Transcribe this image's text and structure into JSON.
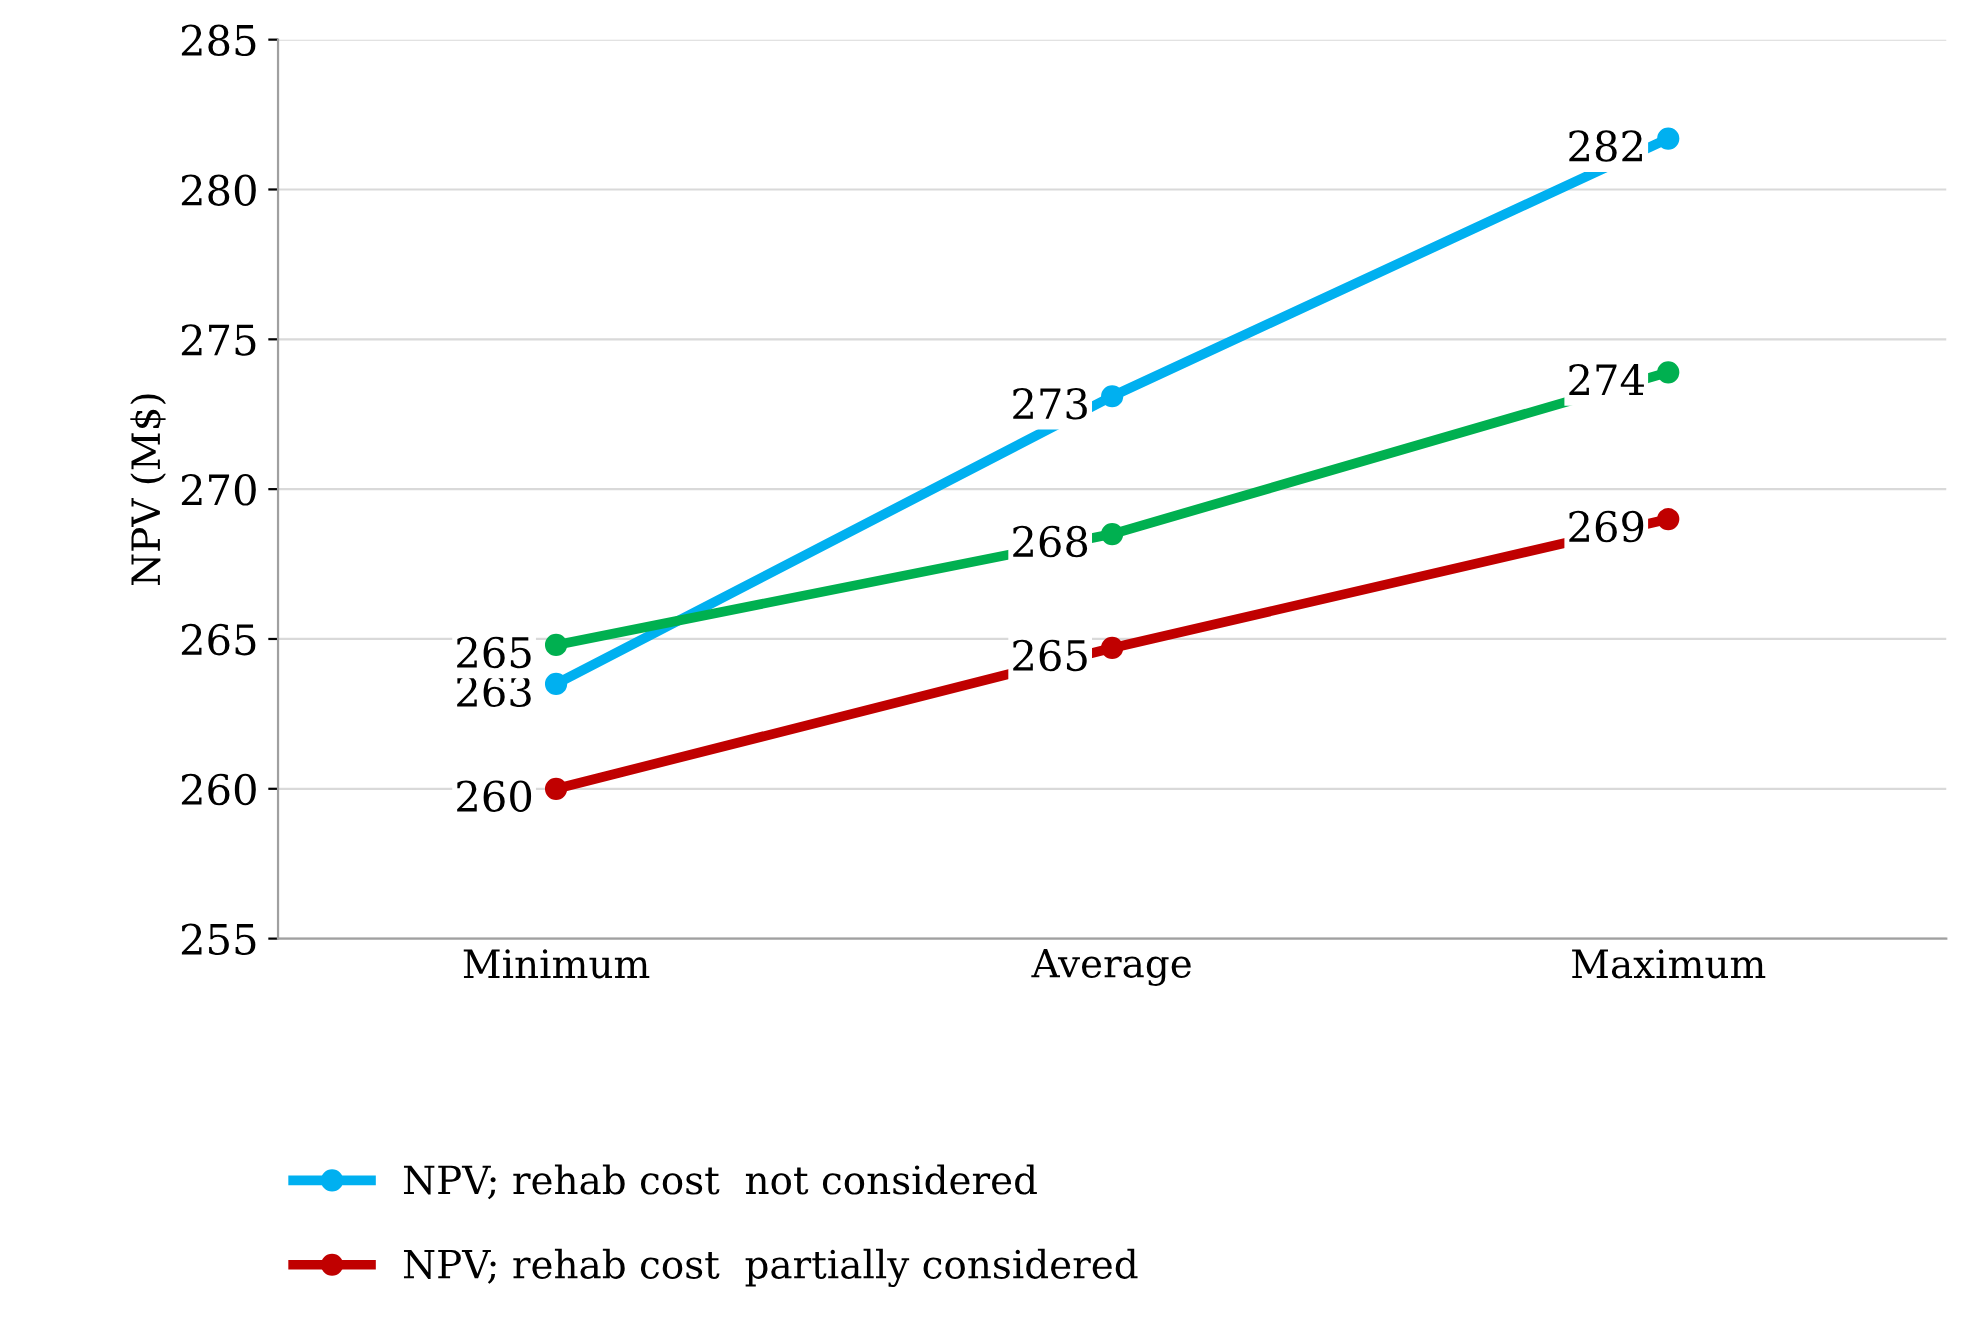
{
  "chart_data": {
    "type": "line",
    "ylabel": "NPV (M$)",
    "categories": [
      "Minimum",
      "Average",
      "Maximum"
    ],
    "series": [
      {
        "name": "NPV; rehab cost  not considered",
        "color": "#00b0f0",
        "values": [
          263.5,
          273.1,
          281.7
        ],
        "value_labels": [
          "263",
          "273",
          "282"
        ]
      },
      {
        "name": "NPV; rehab cost  partially considered",
        "color": "#c00000",
        "values": [
          260.0,
          264.7,
          269.0
        ],
        "value_labels": [
          "260",
          "265",
          "269"
        ]
      },
      {
        "color": "#00b050",
        "values": [
          264.8,
          268.5,
          273.9
        ],
        "value_labels": [
          "265",
          "268",
          "274"
        ]
      }
    ],
    "ylim": [
      255,
      285
    ],
    "yticks": [
      255,
      260,
      265,
      270,
      275,
      280,
      285
    ],
    "grid": "y",
    "legend": "bottom left",
    "marker": "circle",
    "line_style": "solid"
  }
}
